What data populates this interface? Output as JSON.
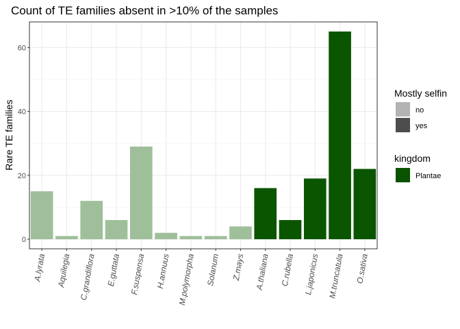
{
  "chart_data": {
    "type": "bar",
    "title": "Count of TE families absent in >10% of the samples",
    "xlabel": "",
    "ylabel": "Rare TE families",
    "ylim": [
      -3,
      68
    ],
    "yticks": [
      0,
      20,
      40,
      60
    ],
    "grid": true,
    "categories": [
      "A.lyrata",
      "Aquilegia",
      "C.grandiflora",
      "E.guttata",
      "F.suspensa",
      "H.annuus",
      "M.polymorpha",
      "Solanum",
      "Z.mays",
      "A.thaliana",
      "C.rubella",
      "L.japonicus",
      "M.truncatula",
      "O.sativa"
    ],
    "values": [
      15,
      1,
      12,
      6,
      29,
      2,
      1,
      1,
      4,
      16,
      6,
      19,
      65,
      22
    ],
    "mostly_selfing": [
      "no",
      "no",
      "no",
      "no",
      "no",
      "no",
      "no",
      "no",
      "no",
      "yes",
      "yes",
      "yes",
      "yes",
      "yes"
    ],
    "legend_position": "right",
    "legends": [
      {
        "title": "Mostly selfin",
        "entries": [
          {
            "label": "no",
            "color": "#b3b3b3"
          },
          {
            "label": "yes",
            "color": "#4d4d4d"
          }
        ]
      },
      {
        "title": "kingdom",
        "entries": [
          {
            "label": "Plantae",
            "color": "#0a5200"
          }
        ]
      }
    ],
    "colors": {
      "no": "#9fbf9a",
      "yes": "#0a5500",
      "panel_border": "#333333",
      "grid_major": "#ebebeb",
      "grid_minor": "#f5f5f5"
    }
  }
}
